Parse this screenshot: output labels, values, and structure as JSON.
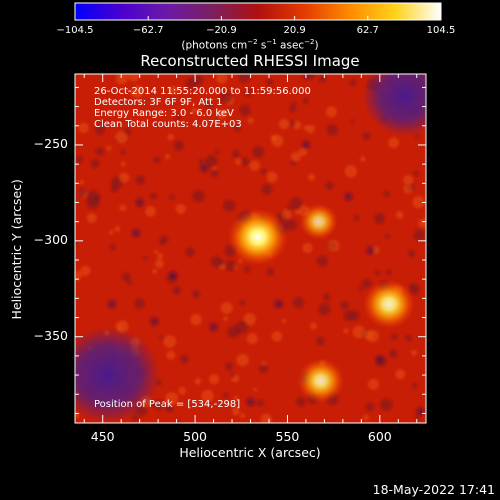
{
  "colorbar": {
    "ticks": [
      "−104.5",
      "−62.7",
      "−20.9",
      "20.9",
      "62.7",
      "104.5"
    ],
    "min": -104.5,
    "max": 104.5,
    "units_text": "(photons cm",
    "units_sup1": "−2",
    "units_s": " s",
    "units_sup2": "−1",
    "units_asec": " asec",
    "units_sup3": "−2",
    "units_close": ")",
    "colors": [
      "#0000ff",
      "#4a00d0",
      "#6a1aa8",
      "#7a2060",
      "#b01010",
      "#e43a00",
      "#ff8a00",
      "#ffd21a",
      "#ffffff"
    ]
  },
  "chart_data": {
    "type": "heatmap",
    "title": "Reconstructed RHESSI Image",
    "xlabel": "Heliocentric X (arcsec)",
    "ylabel": "Heliocentric Y (arcsec)",
    "xlim": [
      435,
      625
    ],
    "ylim": [
      -395,
      -213
    ],
    "xticks": [
      {
        "value": 450,
        "label": "450"
      },
      {
        "value": 500,
        "label": "500"
      },
      {
        "value": 550,
        "label": "550"
      },
      {
        "value": 600,
        "label": "600"
      }
    ],
    "yticks": [
      {
        "value": -250,
        "label": "−250"
      },
      {
        "value": -300,
        "label": "−300"
      },
      {
        "value": -350,
        "label": "−350"
      }
    ],
    "sources": [
      {
        "x": 534,
        "y": -298,
        "peak": 104.5
      },
      {
        "x": 605,
        "y": -333,
        "peak": 82
      },
      {
        "x": 568,
        "y": -373,
        "peak": 70
      },
      {
        "x": 567,
        "y": -290,
        "peak": 48
      }
    ],
    "info_lines": [
      "26-Oct-2014 11:55:20.000 to 11:59:56.000",
      "Detectors: 3F 6F 9F, Att 1",
      "Energy Range: 3.0 - 6.0 keV",
      "Clean    Total counts: 4.07E+03"
    ],
    "peak_label": "Position of Peak = [534,-298]"
  },
  "timestamp": "18-May-2022 17:41"
}
